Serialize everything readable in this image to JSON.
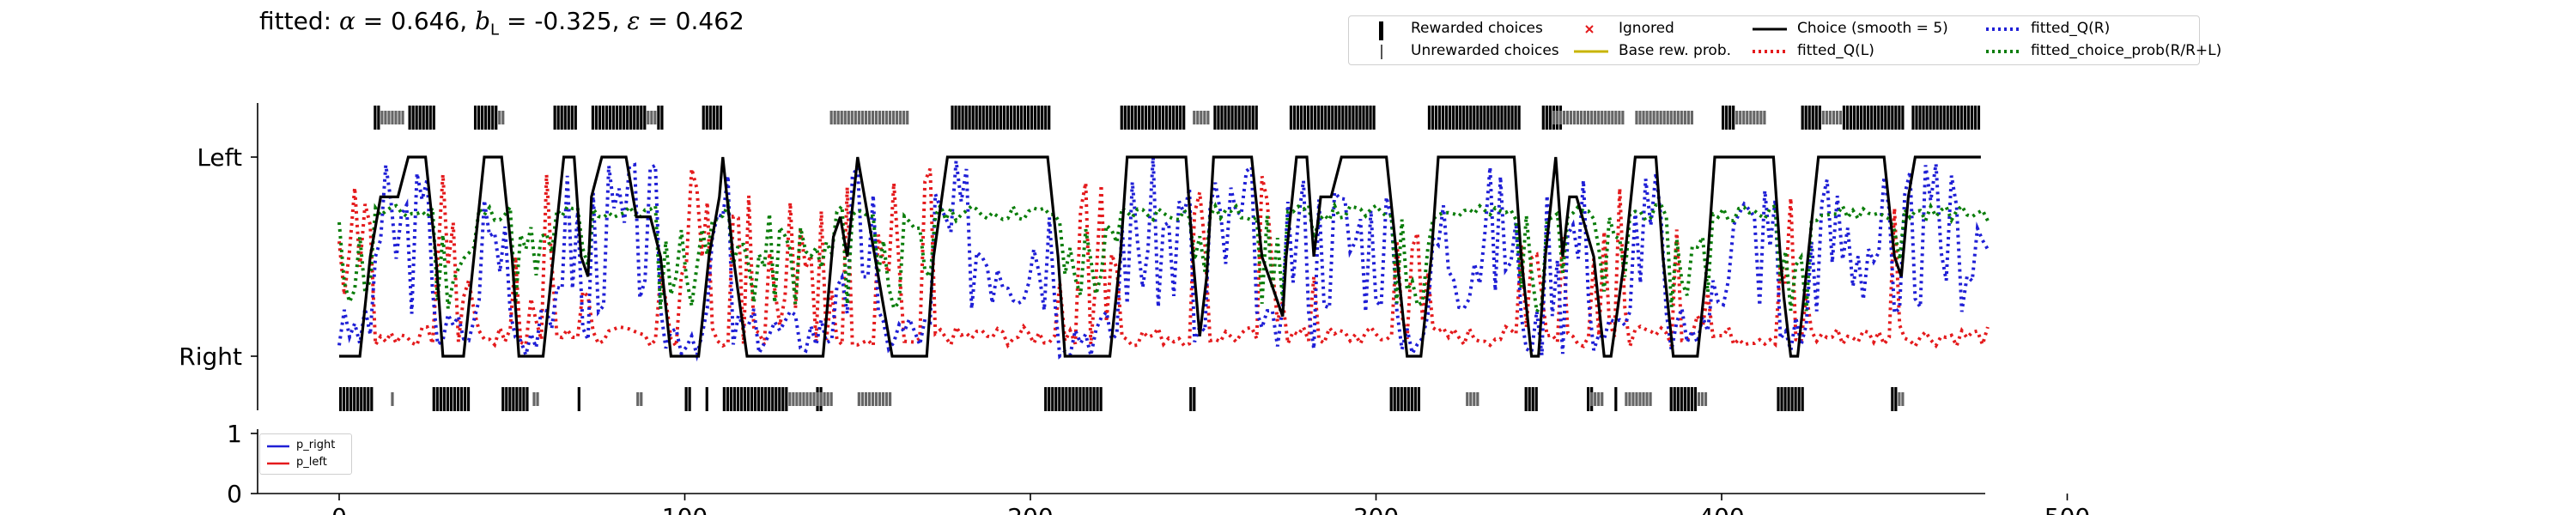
{
  "title": {
    "prefix": "fitted: ",
    "alpha_sym": "α",
    "alpha_val": " = 0.646, ",
    "b_sym": "b",
    "b_sub": "L",
    "b_val": " = -0.325, ",
    "eps_sym": "ε",
    "eps_val": " = 0.462"
  },
  "legend": [
    {
      "key": "rewarded",
      "label": "Rewarded choices",
      "color": "#000000"
    },
    {
      "key": "ignored",
      "label": "Ignored",
      "color": "#e41a1c"
    },
    {
      "key": "choice_smooth",
      "label": "Choice (smooth = 5)",
      "color": "#000000"
    },
    {
      "key": "fitted_q_r",
      "label": "fitted_Q(R)",
      "color": "#1f1fd6"
    },
    {
      "key": "unrewarded",
      "label": "Unrewarded choices",
      "color": "#555555"
    },
    {
      "key": "base_rew",
      "label": "Base rew. prob.",
      "color": "#c8b400"
    },
    {
      "key": "fitted_q_l",
      "label": "fitted_Q(L)",
      "color": "#e41a1c"
    },
    {
      "key": "fitted_choice_prob",
      "label": "fitted_choice_prob(R/R+L)",
      "color": "#0a7d0a"
    }
  ],
  "legend2": [
    {
      "label": "p_right",
      "color": "#1f1fd6"
    },
    {
      "label": "p_left",
      "color": "#e41a1c"
    }
  ],
  "chart_data": {
    "type": "line",
    "n_trials": 477,
    "xlim": [
      -20,
      500
    ],
    "x_ticks": [
      "0",
      "100",
      "200",
      "300",
      "400",
      "500"
    ],
    "y_ticks_main": [
      "Left",
      "Right"
    ],
    "y_ticks_lower": [
      "0",
      "1"
    ],
    "rewarded_right_blocks": [
      [
        10,
        12
      ],
      [
        20,
        28
      ],
      [
        39,
        46
      ],
      [
        62,
        69
      ],
      [
        73,
        89
      ],
      [
        92,
        94
      ],
      [
        105,
        111
      ],
      [
        177,
        206
      ],
      [
        226,
        245
      ],
      [
        253,
        266
      ],
      [
        275,
        300
      ],
      [
        315,
        342
      ],
      [
        348,
        354
      ],
      [
        400,
        404
      ],
      [
        423,
        429
      ],
      [
        435,
        453
      ],
      [
        455,
        475
      ]
    ],
    "unrewarded_right_blocks": [
      [
        12,
        19
      ],
      [
        46,
        48
      ],
      [
        89,
        92
      ],
      [
        142,
        165
      ],
      [
        247,
        252
      ],
      [
        351,
        372
      ],
      [
        375,
        392
      ],
      [
        404,
        413
      ],
      [
        429,
        435
      ]
    ],
    "rewarded_left_blocks": [
      [
        0,
        10
      ],
      [
        27,
        38
      ],
      [
        47,
        55
      ],
      [
        69,
        70
      ],
      [
        100,
        102
      ],
      [
        106,
        107
      ],
      [
        111,
        130
      ],
      [
        138,
        140
      ],
      [
        204,
        221
      ],
      [
        246,
        248
      ],
      [
        304,
        313
      ],
      [
        343,
        347
      ],
      [
        361,
        363
      ],
      [
        369,
        370
      ],
      [
        385,
        393
      ],
      [
        416,
        424
      ],
      [
        449,
        451
      ]
    ],
    "unrewarded_left_blocks": [
      [
        15,
        16
      ],
      [
        56,
        58
      ],
      [
        86,
        88
      ],
      [
        130,
        143
      ],
      [
        150,
        160
      ],
      [
        326,
        330
      ],
      [
        362,
        366
      ],
      [
        372,
        380
      ],
      [
        393,
        396
      ],
      [
        451,
        453
      ]
    ],
    "series": [
      {
        "name": "Choice (smooth = 5)",
        "color": "#000000",
        "points": [
          [
            0,
            0
          ],
          [
            6,
            0
          ],
          [
            9,
            0.5
          ],
          [
            12,
            0.8
          ],
          [
            17,
            0.8
          ],
          [
            20,
            1
          ],
          [
            25,
            1
          ],
          [
            28,
            0.5
          ],
          [
            30,
            0
          ],
          [
            36,
            0
          ],
          [
            39,
            0.5
          ],
          [
            42,
            1
          ],
          [
            47,
            1
          ],
          [
            50,
            0.5
          ],
          [
            52,
            0
          ],
          [
            59,
            0
          ],
          [
            62,
            0.5
          ],
          [
            65,
            1
          ],
          [
            68,
            1
          ],
          [
            70,
            0.5
          ],
          [
            72,
            0.4
          ],
          [
            73,
            0.8
          ],
          [
            76,
            1
          ],
          [
            83,
            1
          ],
          [
            86,
            0.7
          ],
          [
            90,
            0.7
          ],
          [
            93,
            0.5
          ],
          [
            96,
            0
          ],
          [
            104,
            0
          ],
          [
            107,
            0.5
          ],
          [
            110,
            0.8
          ],
          [
            111,
            1
          ],
          [
            114,
            0.5
          ],
          [
            118,
            0
          ],
          [
            140,
            0
          ],
          [
            143,
            0.6
          ],
          [
            145,
            0.7
          ],
          [
            147,
            0.5
          ],
          [
            150,
            1
          ],
          [
            155,
            0.5
          ],
          [
            160,
            0
          ],
          [
            170,
            0
          ],
          [
            172,
            0.5
          ],
          [
            176,
            1
          ],
          [
            205,
            1
          ],
          [
            208,
            0.5
          ],
          [
            210,
            0
          ],
          [
            223,
            0
          ],
          [
            226,
            0.5
          ],
          [
            228,
            1
          ],
          [
            245,
            1
          ],
          [
            247,
            0.5
          ],
          [
            249,
            0.1
          ],
          [
            251,
            0.4
          ],
          [
            253,
            1
          ],
          [
            264,
            1
          ],
          [
            267,
            0.5
          ],
          [
            271,
            0.3
          ],
          [
            273,
            0.2
          ],
          [
            274,
            0.5
          ],
          [
            277,
            1
          ],
          [
            280,
            1
          ],
          [
            282,
            0.5
          ],
          [
            284,
            0.8
          ],
          [
            287,
            0.8
          ],
          [
            290,
            1
          ],
          [
            303,
            1
          ],
          [
            306,
            0.5
          ],
          [
            309,
            0
          ],
          [
            313,
            0
          ],
          [
            316,
            0.5
          ],
          [
            318,
            1
          ],
          [
            340,
            1
          ],
          [
            342,
            0.5
          ],
          [
            345,
            0
          ],
          [
            347,
            0
          ],
          [
            349,
            0.5
          ],
          [
            352,
            1
          ],
          [
            354,
            0.5
          ],
          [
            356,
            0.8
          ],
          [
            358,
            0.8
          ],
          [
            363,
            0.5
          ],
          [
            366,
            0
          ],
          [
            368,
            0
          ],
          [
            372,
            0.5
          ],
          [
            375,
            1
          ],
          [
            381,
            1
          ],
          [
            383,
            0.5
          ],
          [
            386,
            0
          ],
          [
            393,
            0
          ],
          [
            396,
            0.5
          ],
          [
            398,
            1
          ],
          [
            415,
            1
          ],
          [
            417,
            0.5
          ],
          [
            418,
            0.3
          ],
          [
            420,
            0
          ],
          [
            422,
            0
          ],
          [
            425,
            0.5
          ],
          [
            428,
            1
          ],
          [
            447,
            1
          ],
          [
            450,
            0.5
          ],
          [
            452,
            0.4
          ],
          [
            454,
            0.8
          ],
          [
            456,
            1
          ],
          [
            475,
            1
          ]
        ]
      },
      {
        "name": "fitted_Q(R)",
        "color": "#1f1fd6",
        "seed": 3
      },
      {
        "name": "fitted_Q(L)",
        "color": "#e41a1c",
        "seed": 7
      },
      {
        "name": "fitted_choice_prob(R/R+L)",
        "color": "#0a7d0a",
        "seed": 11
      }
    ]
  }
}
